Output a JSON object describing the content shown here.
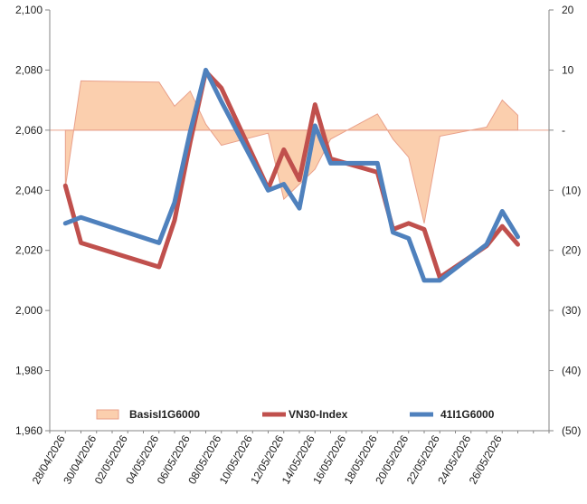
{
  "chart_data": {
    "type": "line",
    "x": [
      "28/04/2026",
      "29/04/2026",
      "04/05/2026",
      "05/05/2026",
      "06/05/2026",
      "07/05/2026",
      "08/05/2026",
      "11/05/2026",
      "12/05/2026",
      "13/05/2026",
      "14/05/2026",
      "15/05/2026",
      "18/05/2026",
      "19/05/2026",
      "20/05/2026",
      "21/05/2026",
      "22/05/2026",
      "25/05/2026",
      "26/05/2026",
      "27/05/2026"
    ],
    "x_tick_labels": [
      "28/04/2026",
      "30/04/2026",
      "02/05/2026",
      "04/05/2026",
      "06/05/2026",
      "08/05/2026",
      "10/05/2026",
      "12/05/2026",
      "14/05/2026",
      "16/05/2026",
      "18/05/2026",
      "20/05/2026",
      "22/05/2026",
      "24/05/2026",
      "26/05/2026"
    ],
    "y_left": {
      "ylim": [
        1960,
        2100
      ],
      "ticks": [
        1960,
        1980,
        2000,
        2020,
        2040,
        2060,
        2080,
        2100
      ],
      "tick_labels": [
        "1,960",
        "1,980",
        "2,000",
        "2,020",
        "2,040",
        "2,060",
        "2,080",
        "2,100"
      ]
    },
    "y_right": {
      "ylim": [
        -50,
        20
      ],
      "ticks": [
        -50,
        -40,
        -30,
        -20,
        -10,
        0,
        10,
        20
      ],
      "tick_labels": [
        "(50)",
        "(40)",
        "(30)",
        "(20)",
        "(10)",
        "-",
        "10",
        "20"
      ]
    },
    "series": [
      {
        "name": "BasisI1G6000",
        "type": "area",
        "axis": "right",
        "color": "#fbcfae",
        "edge_color": "#e9a08a",
        "x": [
          "28/04/2026",
          "29/04/2026",
          "04/05/2026",
          "05/05/2026",
          "06/05/2026",
          "07/05/2026",
          "08/05/2026",
          "11/05/2026",
          "12/05/2026",
          "13/05/2026",
          "14/05/2026",
          "15/05/2026",
          "18/05/2026",
          "19/05/2026",
          "20/05/2026",
          "21/05/2026",
          "22/05/2026",
          "25/05/2026",
          "26/05/2026",
          "27/05/2026"
        ],
        "values": [
          -9.5,
          8.2,
          8.0,
          4.0,
          6.5,
          1.0,
          -2.5,
          -0.5,
          -11.5,
          -9,
          -6.5,
          -1.5,
          2.7,
          -1.5,
          -4.5,
          -15.5,
          -1.0,
          0.5,
          5.0,
          2.5
        ]
      },
      {
        "name": "VN30-Index",
        "type": "line",
        "axis": "left",
        "color": "#c0504d",
        "x": [
          "28/04/2026",
          "29/04/2026",
          "04/05/2026",
          "05/05/2026",
          "06/05/2026",
          "07/05/2026",
          "08/05/2026",
          "11/05/2026",
          "12/05/2026",
          "13/05/2026",
          "14/05/2026",
          "15/05/2026",
          "18/05/2026",
          "19/05/2026",
          "20/05/2026",
          "21/05/2026",
          "22/05/2026",
          "25/05/2026",
          "26/05/2026",
          "27/05/2026"
        ],
        "values": [
          2041.5,
          2022.5,
          2014.5,
          2030,
          2056,
          2079.5,
          2074,
          2040.5,
          2053.5,
          2043.5,
          2068.5,
          2050.5,
          2046,
          2027,
          2029,
          2027,
          2011,
          2021.5,
          2028,
          2022
        ]
      },
      {
        "name": "41I1G6000",
        "type": "line",
        "axis": "left",
        "color": "#4f81bd",
        "x": [
          "28/04/2026",
          "29/04/2026",
          "04/05/2026",
          "05/05/2026",
          "06/05/2026",
          "07/05/2026",
          "08/05/2026",
          "11/05/2026",
          "12/05/2026",
          "13/05/2026",
          "14/05/2026",
          "15/05/2026",
          "18/05/2026",
          "19/05/2026",
          "20/05/2026",
          "21/05/2026",
          "22/05/2026",
          "25/05/2026",
          "26/05/2026",
          "27/05/2026"
        ],
        "values": [
          2029,
          2031,
          2022.5,
          2036,
          2059.5,
          2080,
          2069.5,
          2040,
          2042,
          2034,
          2061.5,
          2049,
          2049,
          2026,
          2024,
          2010,
          2010,
          2022,
          2033,
          2024.5
        ]
      }
    ],
    "legend": {
      "placement": "bottom-inside",
      "entries": [
        "BasisI1G6000",
        "VN30-Index",
        "41I1G6000"
      ]
    },
    "grid": false,
    "title": "",
    "xlabel": "",
    "ylabel": ""
  }
}
